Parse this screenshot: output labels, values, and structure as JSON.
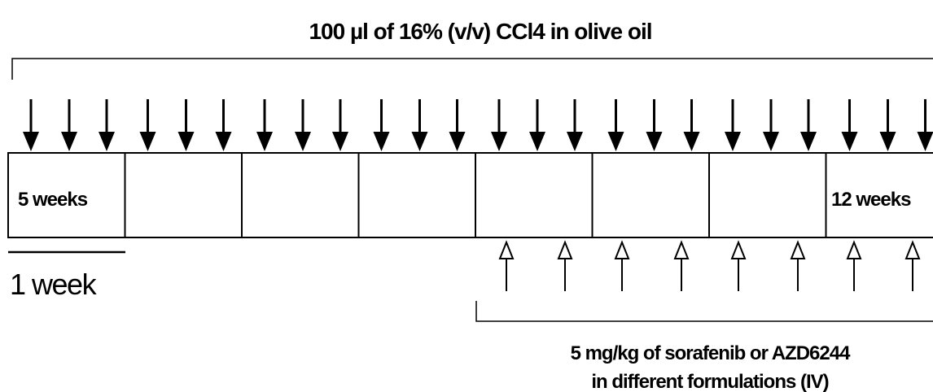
{
  "title": "100 µl of 16% (v/v) CCl4 in olive oil",
  "boxes": {
    "first": "5 weeks",
    "last": "12 weeks"
  },
  "scale_bar": "1 week",
  "treatment": {
    "line1": "5 mg/kg of sorafenib or AZD6244",
    "line2": "in different formulations (IV)"
  }
}
